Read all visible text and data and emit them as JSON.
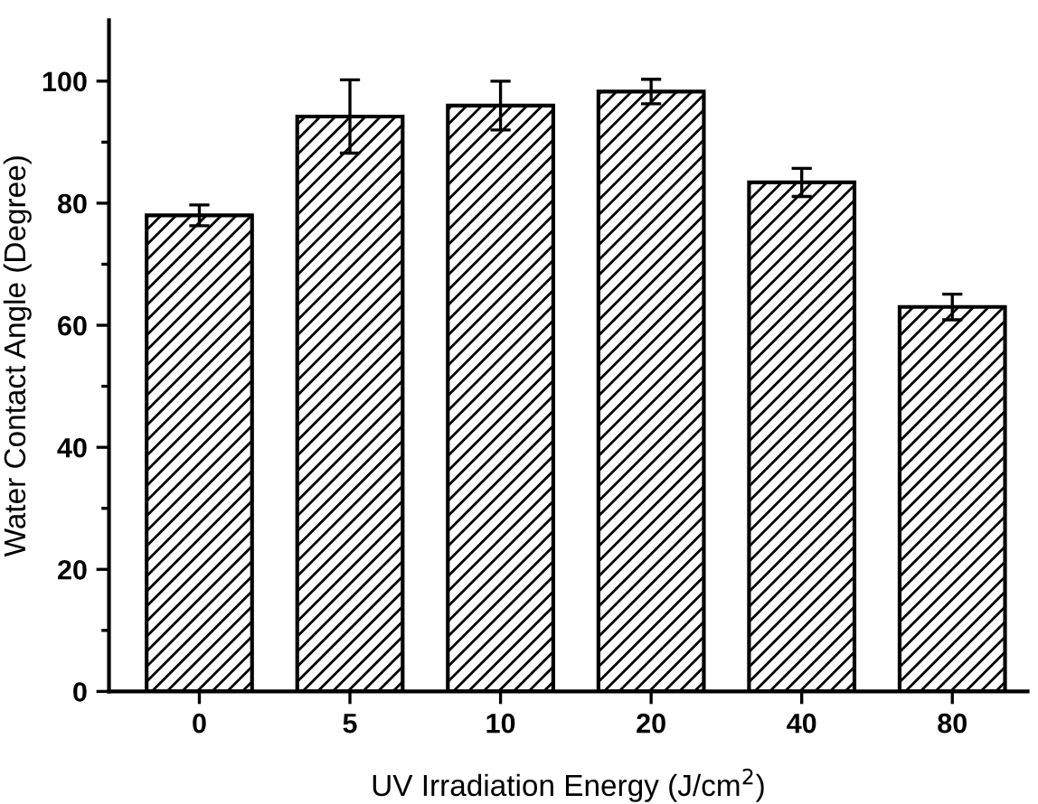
{
  "chart_data": {
    "type": "bar",
    "xlabel": "UV Irradiation Energy (J/cm$^{2}$)",
    "ylabel": "Water Contact Angle (Degree)",
    "categories": [
      "0",
      "5",
      "10",
      "20",
      "40",
      "80"
    ],
    "values": [
      78.0,
      94.2,
      96.0,
      98.3,
      83.4,
      63.0
    ],
    "errors": [
      1.7,
      6.0,
      4.0,
      2.0,
      2.3,
      2.1
    ],
    "color": "#000000",
    "ylim": [
      0,
      110
    ],
    "yticks": [
      0,
      20,
      40,
      60,
      80,
      100
    ],
    "grid": false,
    "legend": false
  }
}
